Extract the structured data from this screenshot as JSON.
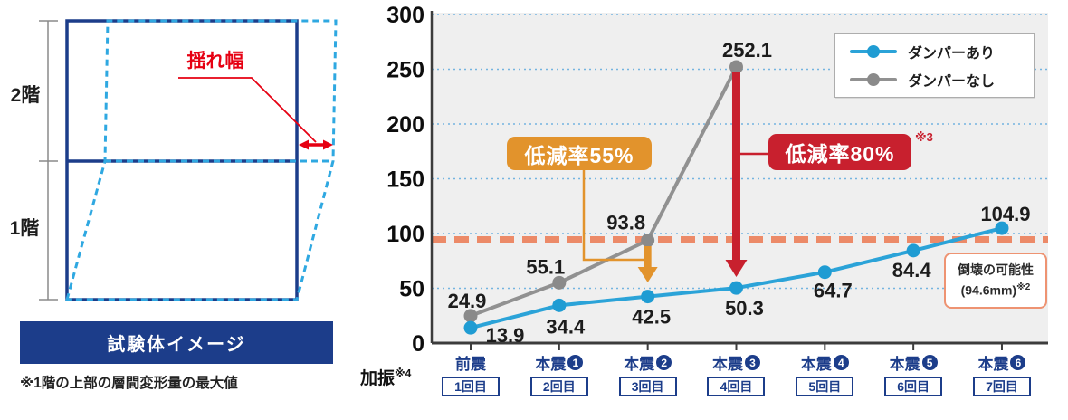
{
  "left_panel": {
    "floor2_label": "2階",
    "floor1_label": "1階",
    "sway_label": "揺れ幅",
    "banner": "試験体イメージ",
    "footnote": "※1階の上部の層間変形量の最大値",
    "colors": {
      "navy": "#1c3d8a",
      "dashed_blue": "#2fa8e1",
      "red": "#e60012"
    }
  },
  "chart_data": {
    "type": "line",
    "xaxis_label": "加振",
    "xaxis_label_sup": "※4",
    "categories": [
      {
        "label": "前震",
        "num": "",
        "sub": "1回目"
      },
      {
        "label": "本震",
        "num": "1",
        "sub": "2回目"
      },
      {
        "label": "本震",
        "num": "2",
        "sub": "3回目"
      },
      {
        "label": "本震",
        "num": "3",
        "sub": "4回目"
      },
      {
        "label": "本震",
        "num": "4",
        "sub": "5回目"
      },
      {
        "label": "本震",
        "num": "5",
        "sub": "6回目"
      },
      {
        "label": "本震",
        "num": "6",
        "sub": "7回目"
      }
    ],
    "series": [
      {
        "name": "ダンパーなし",
        "color": "#919191",
        "dot_color": "#8a8a8a",
        "values": [
          24.9,
          55.1,
          93.8,
          252.1
        ]
      },
      {
        "name": "ダンパーあり",
        "color": "#2ba3d8",
        "dot_color": "#1f9cd3",
        "values": [
          13.9,
          34.4,
          42.5,
          50.3,
          64.7,
          84.4,
          104.9
        ]
      }
    ],
    "ylim": [
      0,
      300
    ],
    "yticks": [
      0,
      50,
      100,
      150,
      200,
      250,
      300
    ],
    "grid": "dotted-blue",
    "legend_position": "top-right",
    "threshold": {
      "value": 94.6,
      "color": "#ec8a68"
    },
    "annotations": {
      "r55": {
        "text": "低減率55%",
        "color": "#e2932c",
        "target_category_index": 2
      },
      "r80": {
        "text": "低減率80%",
        "sup": "※3",
        "color": "#c8202e",
        "target_category_index": 3
      },
      "collapse": {
        "line1": "倒壊の可能性",
        "line2": "(94.6mm)",
        "sup": "※2"
      }
    }
  }
}
